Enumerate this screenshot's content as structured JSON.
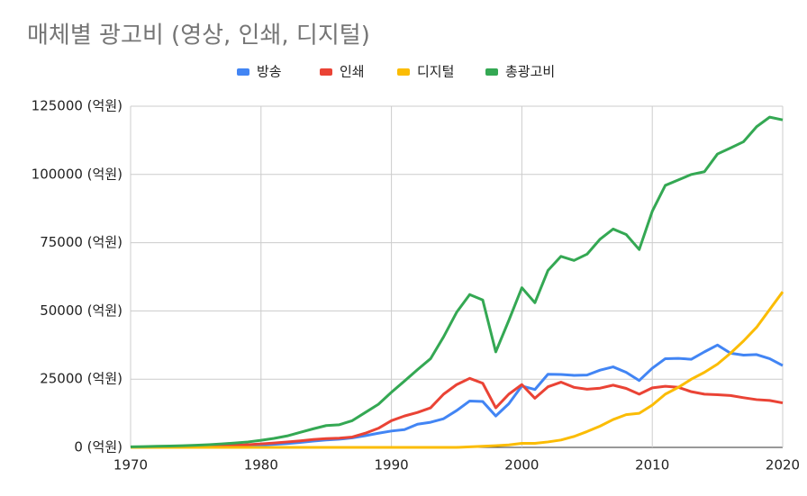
{
  "chart_data": {
    "type": "line",
    "title": "매체별 광고비 (영상, 인쇄, 디지털)",
    "x": [
      1970,
      1971,
      1972,
      1973,
      1974,
      1975,
      1976,
      1977,
      1978,
      1979,
      1980,
      1981,
      1982,
      1983,
      1984,
      1985,
      1986,
      1987,
      1988,
      1989,
      1990,
      1991,
      1992,
      1993,
      1994,
      1995,
      1996,
      1997,
      1998,
      1999,
      2000,
      2001,
      2002,
      2003,
      2004,
      2005,
      2006,
      2007,
      2008,
      2009,
      2010,
      2011,
      2012,
      2013,
      2014,
      2015,
      2016,
      2017,
      2018,
      2019,
      2020
    ],
    "series": [
      {
        "name": "방송",
        "color": "#4285f4",
        "values": [
          50,
          80,
          100,
          150,
          200,
          300,
          400,
          500,
          600,
          700,
          900,
          1100,
          1400,
          1800,
          2300,
          2700,
          3000,
          3500,
          4300,
          5200,
          6000,
          6500,
          8500,
          9200,
          10500,
          13500,
          17000,
          16800,
          11500,
          16000,
          22500,
          21200,
          26800,
          26700,
          26400,
          26500,
          28300,
          29500,
          27500,
          24500,
          29000,
          32500,
          32600,
          32300,
          35000,
          37500,
          34500,
          33800,
          34000,
          32500,
          30000
        ]
      },
      {
        "name": "인쇄",
        "color": "#ea4335",
        "values": [
          100,
          150,
          200,
          250,
          300,
          400,
          500,
          600,
          800,
          1000,
          1300,
          1600,
          2000,
          2400,
          2900,
          3200,
          3400,
          3800,
          5200,
          7000,
          9800,
          11500,
          12800,
          14500,
          19500,
          23000,
          25300,
          23500,
          14500,
          19500,
          23000,
          18000,
          22200,
          23900,
          22000,
          21300,
          21700,
          22800,
          21600,
          19500,
          21800,
          22400,
          22000,
          20400,
          19500,
          19300,
          19000,
          18200,
          17500,
          17200,
          16300
        ]
      },
      {
        "name": "디지털",
        "color": "#fbbc04",
        "values": [
          0,
          0,
          0,
          0,
          0,
          0,
          0,
          0,
          0,
          0,
          0,
          0,
          0,
          0,
          0,
          0,
          0,
          0,
          0,
          0,
          0,
          0,
          0,
          0,
          0,
          0,
          200,
          400,
          600,
          900,
          1500,
          1500,
          2000,
          2700,
          4000,
          5800,
          7800,
          10200,
          12000,
          12500,
          15500,
          19500,
          22000,
          25000,
          27500,
          30500,
          34500,
          39000,
          44000,
          50500,
          57000
        ]
      },
      {
        "name": "총광고비",
        "color": "#34a853",
        "values": [
          200,
          300,
          400,
          500,
          600,
          800,
          1000,
          1300,
          1600,
          2000,
          2600,
          3300,
          4200,
          5500,
          6800,
          8000,
          8300,
          9800,
          12800,
          15800,
          20200,
          24300,
          28500,
          32500,
          40500,
          49500,
          56000,
          54000,
          35000,
          46500,
          58500,
          53000,
          64800,
          70000,
          68500,
          70800,
          76300,
          80000,
          78000,
          72500,
          86500,
          96000,
          98000,
          100000,
          101000,
          107500,
          109700,
          112000,
          117500,
          121000,
          120000
        ]
      }
    ],
    "xlim": [
      1970,
      2020
    ],
    "xticks": [
      1970,
      1980,
      1990,
      2000,
      2010,
      2020
    ],
    "ylim": [
      0,
      125000
    ],
    "yticks": [
      {
        "value": 0,
        "label": "0 (억원)"
      },
      {
        "value": 25000,
        "label": "25000 (억원)"
      },
      {
        "value": 50000,
        "label": "50000 (억원)"
      },
      {
        "value": 75000,
        "label": "75000 (억원)"
      },
      {
        "value": 100000,
        "label": "100000 (억원)"
      },
      {
        "value": 125000,
        "label": "125000 (억원)"
      }
    ],
    "grid": true,
    "legend": "top"
  }
}
